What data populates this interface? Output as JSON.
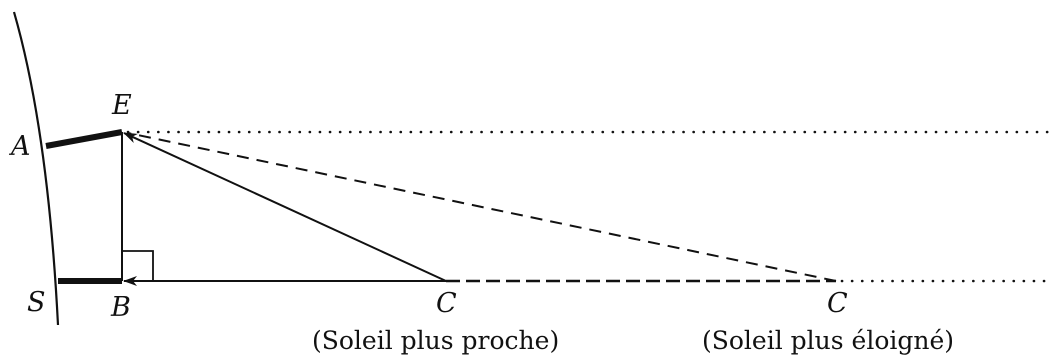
{
  "labels": {
    "E": "E",
    "A": "A",
    "S": "S",
    "B": "B",
    "C_near": "C",
    "C_far": "C"
  },
  "captions": {
    "near": "(Soleil plus proche)",
    "far": "(Soleil plus éloigné)"
  },
  "colors": {
    "ink": "#111111",
    "background": "#ffffff"
  }
}
